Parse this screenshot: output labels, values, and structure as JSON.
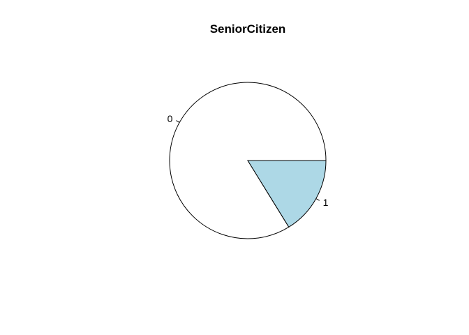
{
  "chart_data": {
    "type": "pie",
    "title": "SeniorCitizen",
    "slices": [
      {
        "label": "0",
        "value": 0.838,
        "color": "#ffffff"
      },
      {
        "label": "1",
        "value": 0.162,
        "color": "#add8e6"
      }
    ],
    "start_angle_deg": 0,
    "direction": "counterclockwise",
    "border_color": "#000000"
  }
}
